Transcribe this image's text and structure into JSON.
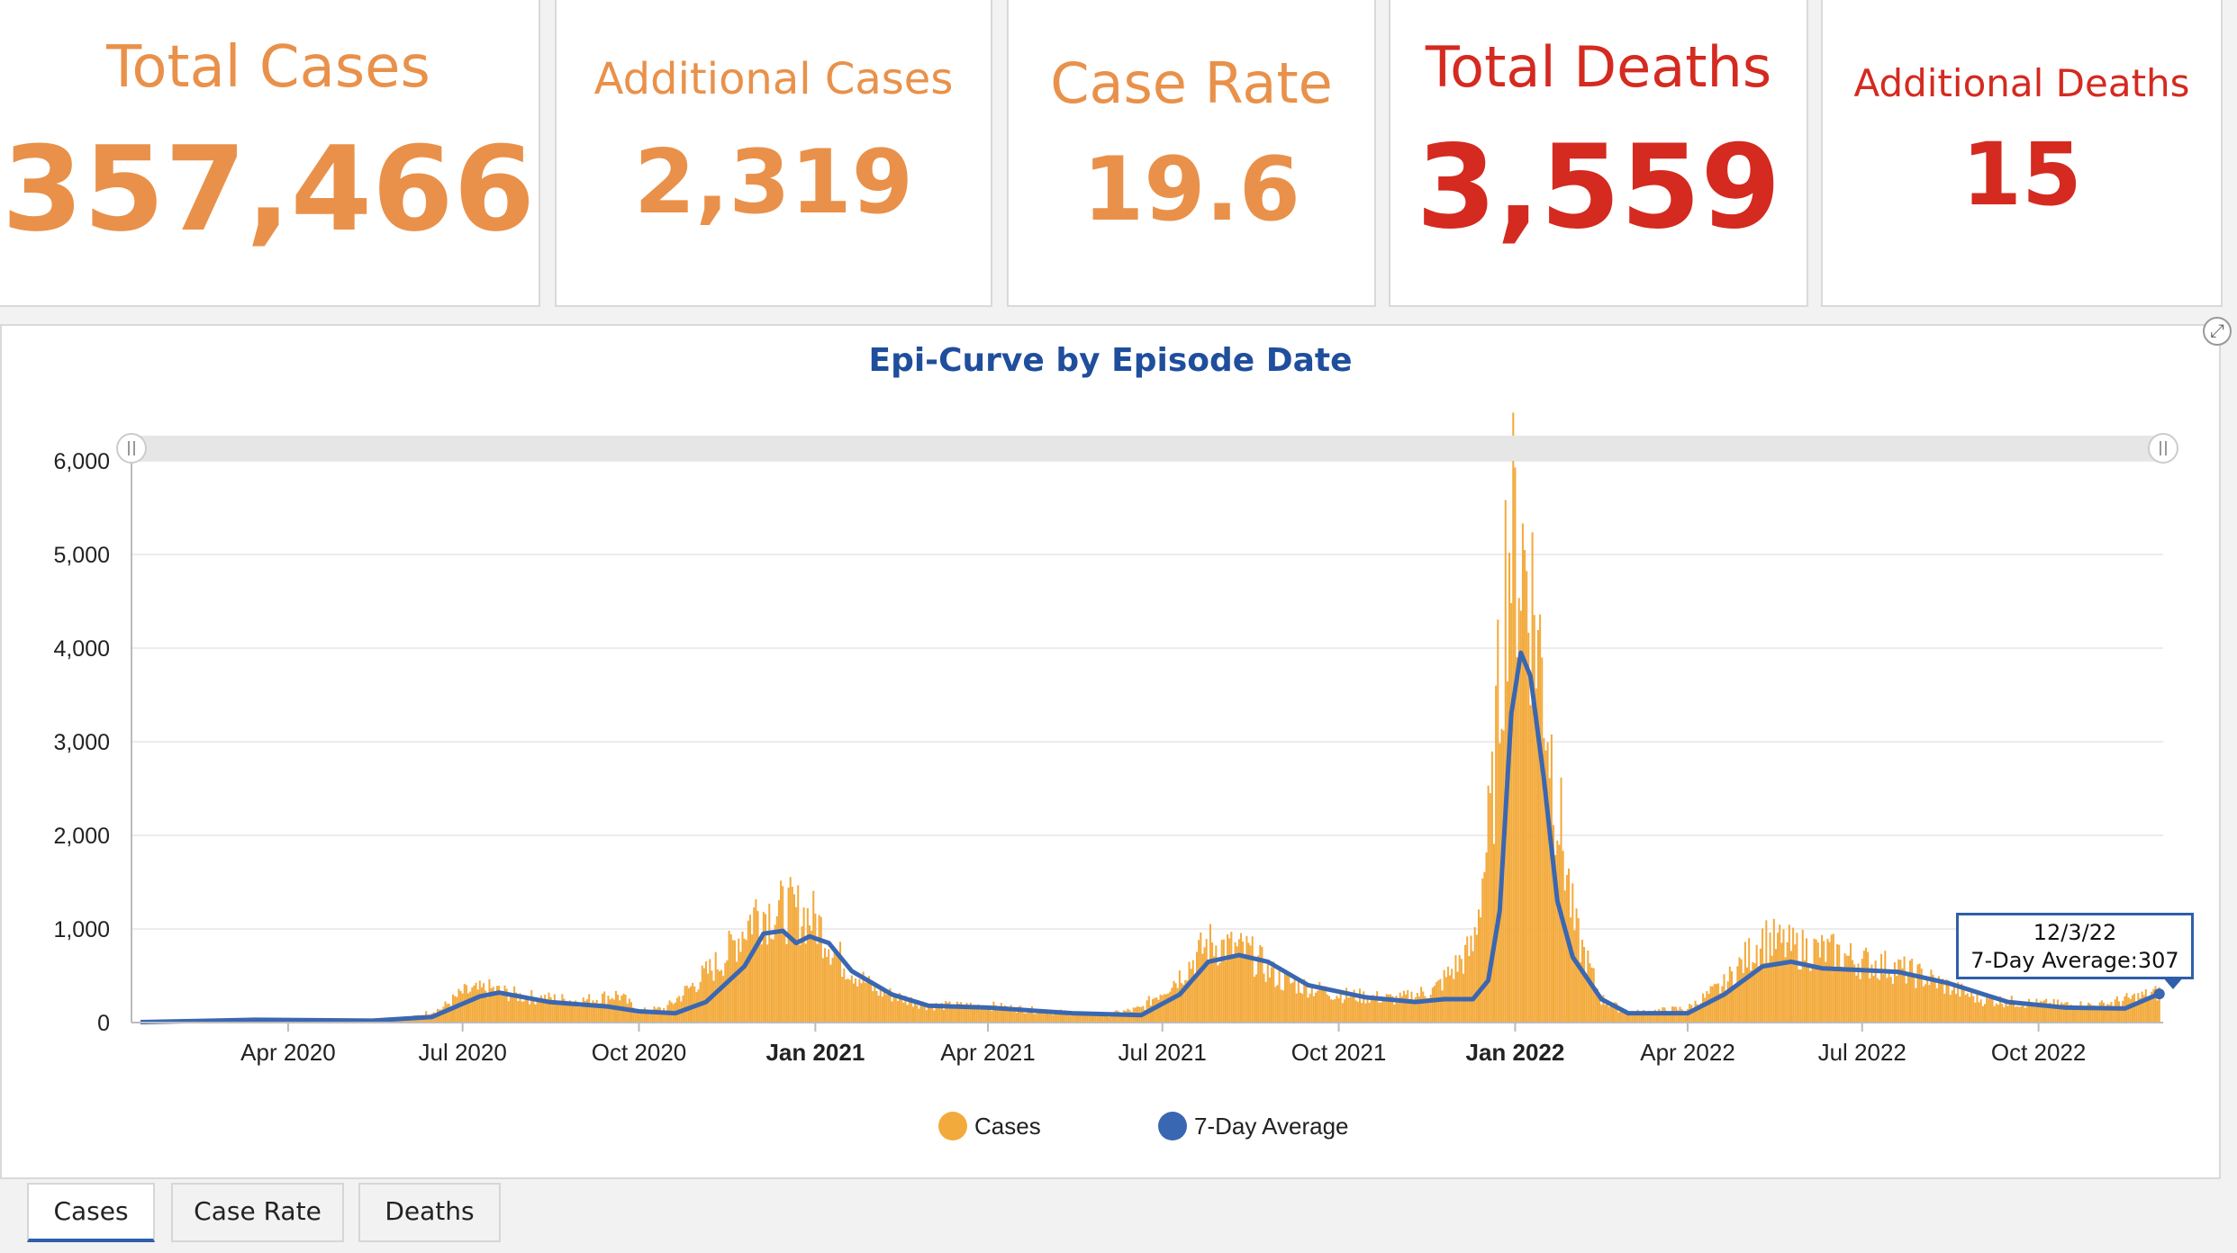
{
  "stats": {
    "total_cases": {
      "label": "Total Cases",
      "value": "357,466"
    },
    "additional_cases": {
      "label": "Additional Cases",
      "value": "2,319"
    },
    "case_rate": {
      "label": "Case Rate",
      "value": "19.6"
    },
    "total_deaths": {
      "label": "Total Deaths",
      "value": "3,559"
    },
    "additional_deaths": {
      "label": "Additional Deaths",
      "value": "15"
    }
  },
  "colors": {
    "stat_orange": "#e9914a",
    "stat_red": "#d42a20",
    "cases_bar": "#f3aa3c",
    "average_line": "#3a67b1",
    "title_blue": "#1f4e9c"
  },
  "tooltip": {
    "date": "12/3/22",
    "text": "7-Day Average:307"
  },
  "tabs": [
    {
      "label": "Cases",
      "active": true
    },
    {
      "label": "Case Rate",
      "active": false
    },
    {
      "label": "Deaths",
      "active": false
    }
  ],
  "icons": {
    "expand": "expand-icon"
  },
  "chart_data": {
    "type": "bar",
    "title": "Epi-Curve by Episode Date",
    "ylim": [
      0,
      6000
    ],
    "y_ticks": [
      "0",
      "1,000",
      "2,000",
      "3,000",
      "4,000",
      "5,000",
      "6,000"
    ],
    "x_range": [
      "2020-01-15",
      "2022-12-05"
    ],
    "x_ticks": [
      {
        "date": "2020-04-01",
        "label": "Apr 2020",
        "bold": false
      },
      {
        "date": "2020-07-01",
        "label": "Jul 2020",
        "bold": false
      },
      {
        "date": "2020-10-01",
        "label": "Oct 2020",
        "bold": false
      },
      {
        "date": "2021-01-01",
        "label": "Jan 2021",
        "bold": true
      },
      {
        "date": "2021-04-01",
        "label": "Apr 2021",
        "bold": false
      },
      {
        "date": "2021-07-01",
        "label": "Jul 2021",
        "bold": false
      },
      {
        "date": "2021-10-01",
        "label": "Oct 2021",
        "bold": false
      },
      {
        "date": "2022-01-01",
        "label": "Jan 2022",
        "bold": true
      },
      {
        "date": "2022-04-01",
        "label": "Apr 2022",
        "bold": false
      },
      {
        "date": "2022-07-01",
        "label": "Jul 2022",
        "bold": false
      },
      {
        "date": "2022-10-01",
        "label": "Oct 2022",
        "bold": false
      }
    ],
    "legend": [
      {
        "name": "Cases",
        "color": "#f3aa3c"
      },
      {
        "name": "7-Day Average",
        "color": "#3a67b1"
      }
    ],
    "series": [
      {
        "name": "Cases",
        "type": "bar",
        "points": [
          [
            "2020-01-15",
            5
          ],
          [
            "2020-02-15",
            15
          ],
          [
            "2020-03-15",
            40
          ],
          [
            "2020-04-01",
            25
          ],
          [
            "2020-05-01",
            15
          ],
          [
            "2020-06-01",
            30
          ],
          [
            "2020-06-20",
            150
          ],
          [
            "2020-07-01",
            320
          ],
          [
            "2020-07-15",
            360
          ],
          [
            "2020-08-01",
            280
          ],
          [
            "2020-09-01",
            230
          ],
          [
            "2020-09-20",
            300
          ],
          [
            "2020-10-01",
            120
          ],
          [
            "2020-10-15",
            150
          ],
          [
            "2020-11-01",
            450
          ],
          [
            "2020-11-15",
            700
          ],
          [
            "2020-12-01",
            1200
          ],
          [
            "2020-12-10",
            1180
          ],
          [
            "2020-12-20",
            1200
          ],
          [
            "2021-01-01",
            1100
          ],
          [
            "2021-01-15",
            650
          ],
          [
            "2021-02-01",
            350
          ],
          [
            "2021-03-01",
            180
          ],
          [
            "2021-04-01",
            180
          ],
          [
            "2021-05-01",
            120
          ],
          [
            "2021-06-01",
            80
          ],
          [
            "2021-06-20",
            150
          ],
          [
            "2021-07-10",
            500
          ],
          [
            "2021-07-25",
            850
          ],
          [
            "2021-08-15",
            750
          ],
          [
            "2021-09-01",
            450
          ],
          [
            "2021-10-01",
            300
          ],
          [
            "2021-11-01",
            250
          ],
          [
            "2021-11-20",
            350
          ],
          [
            "2021-12-10",
            800
          ],
          [
            "2021-12-20",
            2300
          ],
          [
            "2021-12-28",
            5100
          ],
          [
            "2022-01-02",
            5150
          ],
          [
            "2022-01-08",
            4800
          ],
          [
            "2022-01-15",
            3800
          ],
          [
            "2022-01-22",
            2500
          ],
          [
            "2022-02-01",
            1000
          ],
          [
            "2022-02-15",
            250
          ],
          [
            "2022-03-01",
            100
          ],
          [
            "2022-04-01",
            150
          ],
          [
            "2022-04-20",
            400
          ],
          [
            "2022-05-10",
            900
          ],
          [
            "2022-05-25",
            800
          ],
          [
            "2022-06-15",
            750
          ],
          [
            "2022-07-01",
            650
          ],
          [
            "2022-07-15",
            600
          ],
          [
            "2022-08-01",
            500
          ],
          [
            "2022-09-01",
            250
          ],
          [
            "2022-10-01",
            200
          ],
          [
            "2022-11-01",
            180
          ],
          [
            "2022-12-03",
            320
          ]
        ]
      },
      {
        "name": "7-Day Average",
        "type": "line",
        "points": [
          [
            "2020-01-15",
            5
          ],
          [
            "2020-03-15",
            30
          ],
          [
            "2020-05-15",
            20
          ],
          [
            "2020-06-15",
            60
          ],
          [
            "2020-07-10",
            280
          ],
          [
            "2020-07-20",
            320
          ],
          [
            "2020-08-15",
            220
          ],
          [
            "2020-09-15",
            170
          ],
          [
            "2020-10-01",
            120
          ],
          [
            "2020-10-20",
            100
          ],
          [
            "2020-11-05",
            220
          ],
          [
            "2020-11-25",
            600
          ],
          [
            "2020-12-05",
            950
          ],
          [
            "2020-12-15",
            980
          ],
          [
            "2020-12-22",
            850
          ],
          [
            "2020-12-29",
            920
          ],
          [
            "2021-01-08",
            850
          ],
          [
            "2021-01-20",
            550
          ],
          [
            "2021-02-10",
            300
          ],
          [
            "2021-03-01",
            180
          ],
          [
            "2021-04-01",
            160
          ],
          [
            "2021-05-15",
            100
          ],
          [
            "2021-06-20",
            80
          ],
          [
            "2021-07-10",
            300
          ],
          [
            "2021-07-25",
            650
          ],
          [
            "2021-08-10",
            720
          ],
          [
            "2021-08-25",
            650
          ],
          [
            "2021-09-15",
            400
          ],
          [
            "2021-10-15",
            270
          ],
          [
            "2021-11-10",
            220
          ],
          [
            "2021-11-25",
            250
          ],
          [
            "2021-12-10",
            250
          ],
          [
            "2021-12-18",
            450
          ],
          [
            "2021-12-24",
            1200
          ],
          [
            "2021-12-30",
            3300
          ],
          [
            "2022-01-04",
            3950
          ],
          [
            "2022-01-09",
            3700
          ],
          [
            "2022-01-16",
            2600
          ],
          [
            "2022-01-23",
            1300
          ],
          [
            "2022-01-31",
            700
          ],
          [
            "2022-02-15",
            250
          ],
          [
            "2022-03-01",
            100
          ],
          [
            "2022-04-01",
            100
          ],
          [
            "2022-04-20",
            300
          ],
          [
            "2022-05-10",
            600
          ],
          [
            "2022-05-25",
            650
          ],
          [
            "2022-06-10",
            580
          ],
          [
            "2022-07-01",
            560
          ],
          [
            "2022-07-20",
            540
          ],
          [
            "2022-08-15",
            420
          ],
          [
            "2022-09-15",
            220
          ],
          [
            "2022-10-15",
            160
          ],
          [
            "2022-11-15",
            150
          ],
          [
            "2022-12-03",
            307
          ]
        ]
      }
    ]
  }
}
